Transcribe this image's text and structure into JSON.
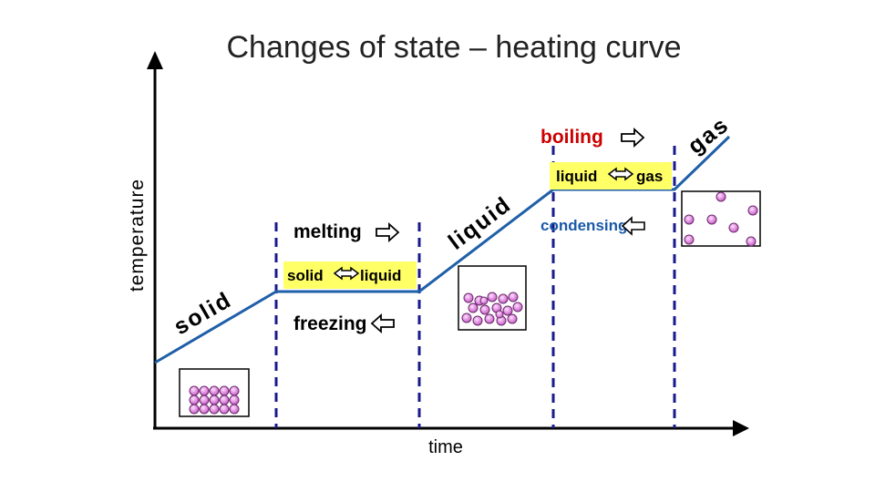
{
  "title": "Changes of state – heating curve",
  "axes": {
    "y_label": "temperature",
    "x_label": "time"
  },
  "phase_labels": {
    "solid": "solid",
    "liquid": "liquid",
    "gas": "gas"
  },
  "transition_labels": {
    "melting": "melting",
    "freezing": "freezing",
    "boiling": "boiling",
    "condensing": "condensing"
  },
  "equilibrium_labels": {
    "solid_liquid": {
      "left": "solid",
      "right": "liquid"
    },
    "liquid_gas": {
      "left": "liquid",
      "right": "gas"
    }
  },
  "colors": {
    "axis": "#000000",
    "curve": "#1f5fa8",
    "dashed": "#1a1a8c",
    "boiling_text": "#cc0000",
    "condensing_text": "#1a5aa8",
    "highlight": "#ffff66",
    "particle": "#e38fe3"
  },
  "icons": {
    "arrow_right": "right-double-arrow-icon",
    "arrow_left": "left-double-arrow-icon",
    "arrow_both": "left-right-double-arrow-icon"
  }
}
